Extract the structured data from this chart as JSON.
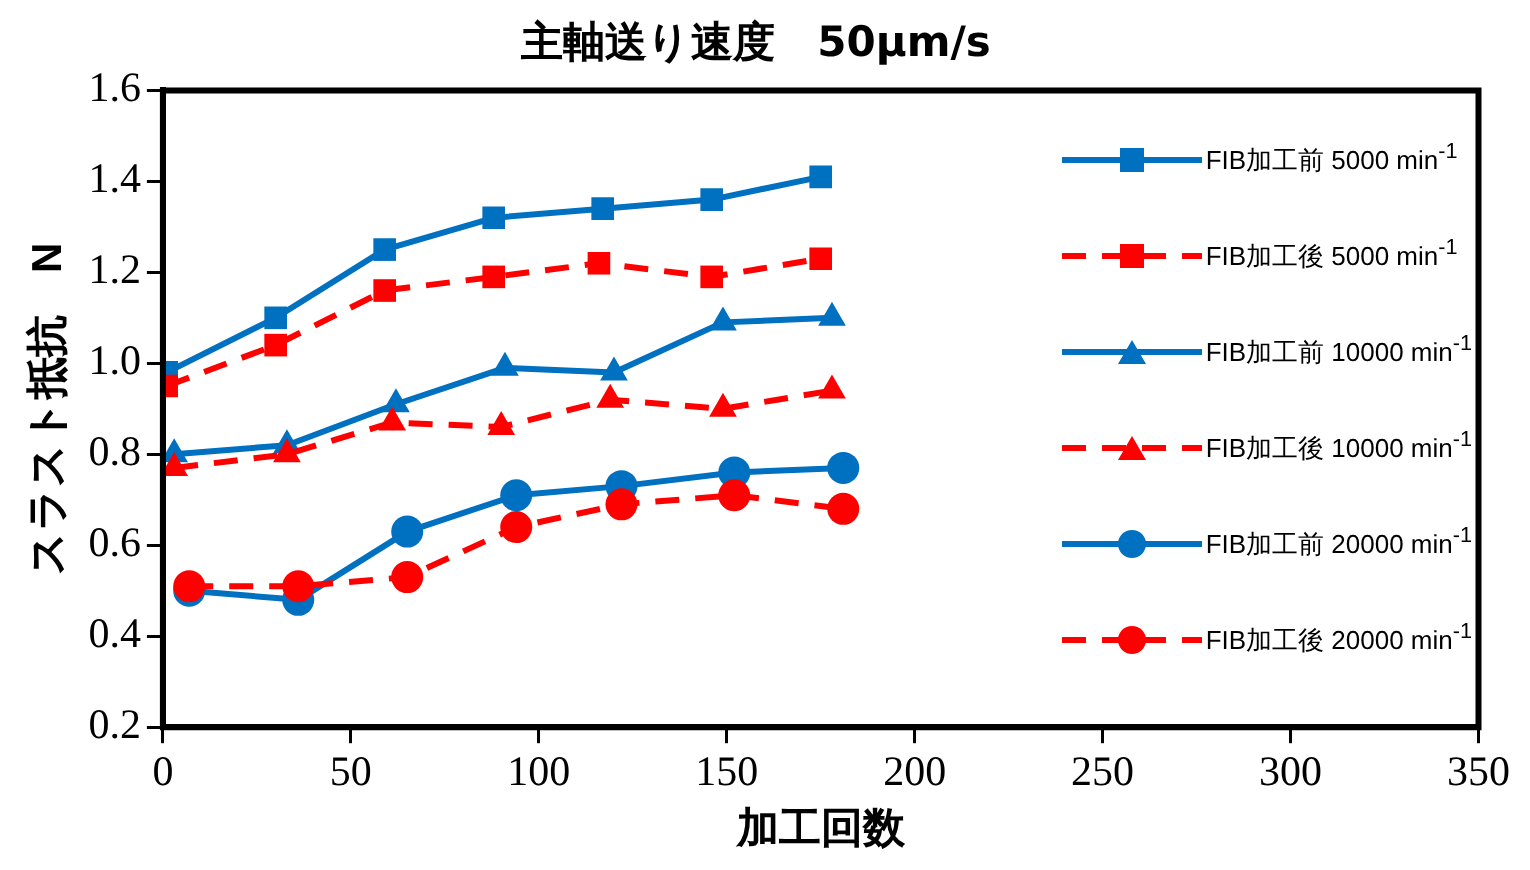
{
  "chart_data": {
    "type": "line",
    "title": "主軸送り速度　50μm/s",
    "xlabel": "加工回数",
    "ylabel": "スラスト抵抗　N",
    "xlim": [
      0,
      350
    ],
    "xticks": [
      0,
      50,
      100,
      150,
      200,
      250,
      300,
      350
    ],
    "ylim": [
      0.2,
      1.6
    ],
    "yticks": [
      0.2,
      0.4,
      0.6,
      0.8,
      {
        "value": 1,
        "label": "1.0"
      },
      1.2,
      1.4,
      1.6
    ],
    "grid": false,
    "legend": "top right",
    "series": [
      {
        "name": "FIB加工前 5000 min$^{-1}$",
        "color": "#0070c0",
        "marker": "square",
        "line_style": "solid",
        "x": [
          1,
          30,
          59,
          88,
          117,
          146,
          175
        ],
        "values": [
          0.98,
          1.1,
          1.25,
          1.32,
          1.34,
          1.36,
          1.41
        ]
      },
      {
        "name": "FIB加工後 5000 min$^{-1}$",
        "color": "#ff0000",
        "marker": "square",
        "line_style": "dashed",
        "x": [
          1,
          30,
          59,
          88,
          116,
          146,
          175
        ],
        "values": [
          0.95,
          1.04,
          1.16,
          1.19,
          1.22,
          1.19,
          1.23
        ]
      },
      {
        "name": "FIB加工前 10000 min$^{-1}$",
        "color": "#0070c0",
        "marker": "triangle",
        "line_style": "solid",
        "x": [
          3,
          33,
          62,
          91,
          120,
          149,
          178
        ],
        "values": [
          0.8,
          0.82,
          0.91,
          0.99,
          0.98,
          1.09,
          1.1
        ]
      },
      {
        "name": "FIB加工後 10000 min$^{-1}$",
        "color": "#ff0000",
        "marker": "triangle",
        "line_style": "dashed",
        "x": [
          3,
          33,
          61,
          90,
          119,
          149,
          178
        ],
        "values": [
          0.77,
          0.8,
          0.87,
          0.86,
          0.92,
          0.9,
          0.94
        ]
      },
      {
        "name": "FIB加工前 20000 min$^{-1}$",
        "color": "#0070c0",
        "marker": "circle",
        "line_style": "solid",
        "x": [
          7,
          36,
          65,
          94,
          122,
          152,
          181
        ],
        "values": [
          0.5,
          0.48,
          0.63,
          0.71,
          0.73,
          0.76,
          0.77
        ]
      },
      {
        "name": "FIB加工後 20000 min$^{-1}$",
        "color": "#ff0000",
        "marker": "circle",
        "line_style": "dashed",
        "x": [
          7,
          36,
          65,
          94,
          122,
          152,
          181
        ],
        "values": [
          0.51,
          0.51,
          0.53,
          0.64,
          0.69,
          0.71,
          0.68
        ]
      }
    ]
  }
}
